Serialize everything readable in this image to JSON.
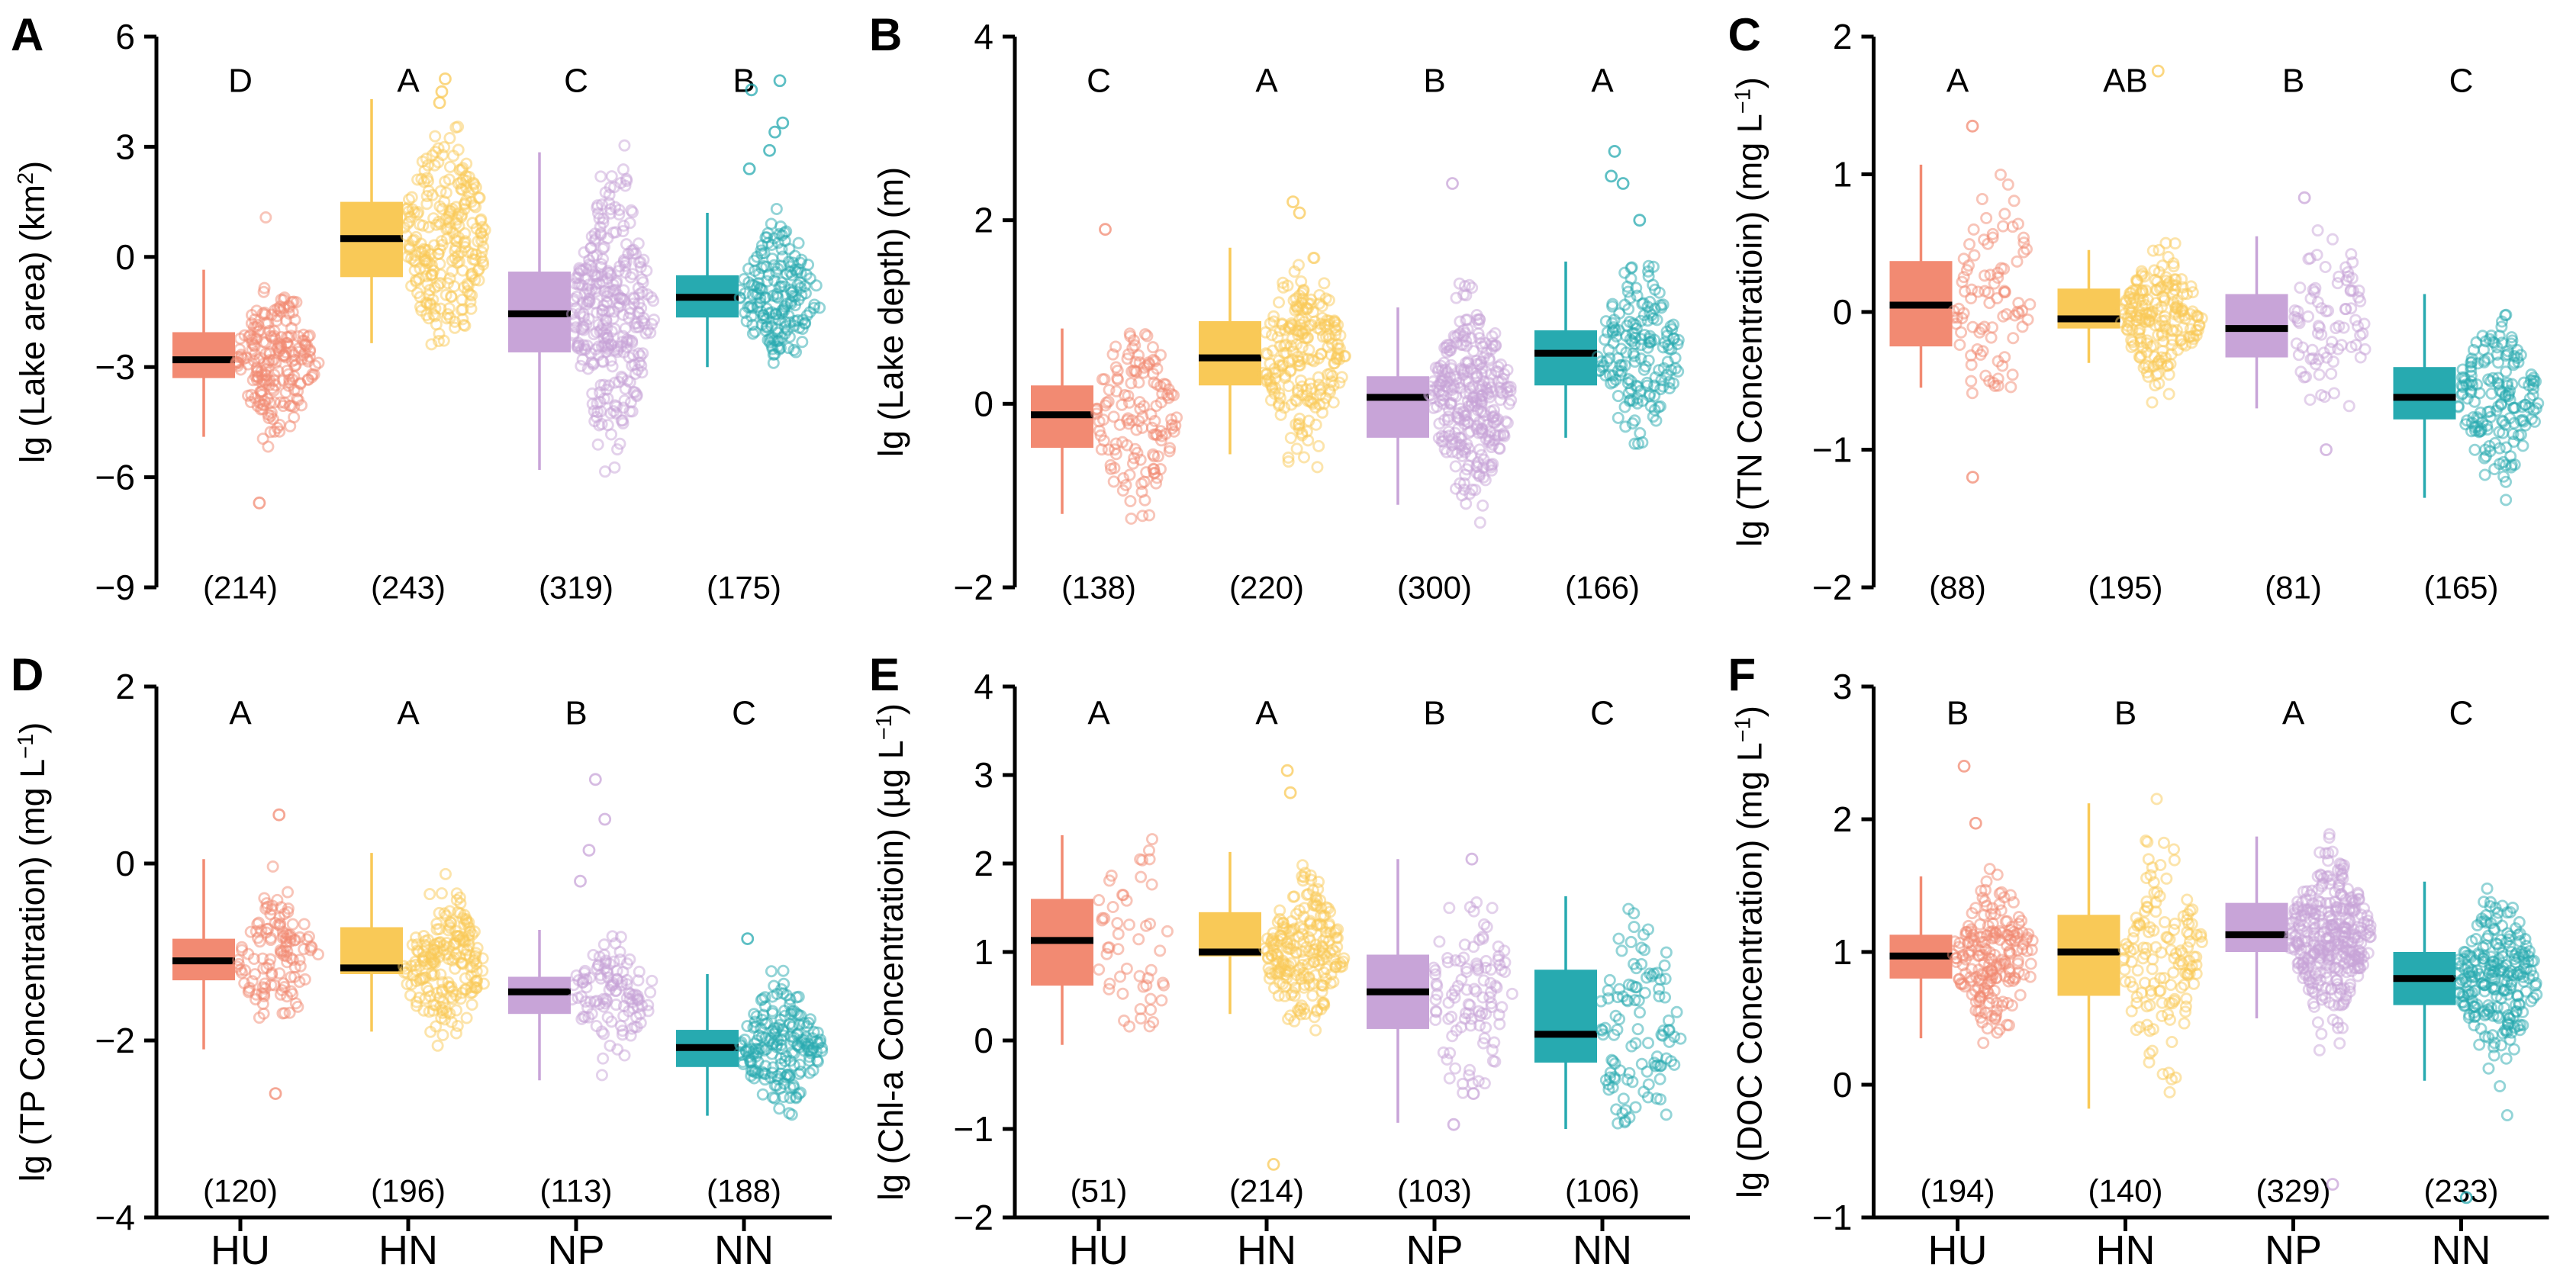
{
  "figure": {
    "background": "#FFFFFF",
    "rows": 2,
    "cols": 3,
    "description_visible_text_only": true
  },
  "colors": {
    "HU": "#F28A72",
    "HN": "#F9C957",
    "NP": "#C8A4D8",
    "NN": "#27AAB0",
    "median": "#000000",
    "axis": "#000000",
    "text": "#000000"
  },
  "categories": [
    "HU",
    "HN",
    "NP",
    "NN"
  ],
  "chart_data": [
    {
      "panel_letter": "A",
      "type": "box-jitter",
      "ylabel_pre": "lg (Lake area) (km",
      "ylabel_sup": "2",
      "ylabel_post": ")",
      "ylim": [
        -9,
        6
      ],
      "yticks": [
        6,
        3,
        0,
        -3,
        -6,
        -9
      ],
      "show_x_labels": false,
      "groups": [
        {
          "category": "HU",
          "sig": "D",
          "n": 214,
          "median": -2.8,
          "q1": -3.3,
          "q3": -2.05,
          "whisker_low": -4.9,
          "whisker_high": -0.35,
          "scatter_range": [
            -6.0,
            1.5
          ],
          "outliers": [
            -6.7
          ]
        },
        {
          "category": "HN",
          "sig": "A",
          "n": 243,
          "median": 0.5,
          "q1": -0.55,
          "q3": 1.5,
          "whisker_low": -2.35,
          "whisker_high": 4.3,
          "scatter_range": [
            -2.5,
            3.6
          ],
          "outliers": [
            4.85,
            4.5,
            4.2
          ]
        },
        {
          "category": "NP",
          "sig": "C",
          "n": 319,
          "median": -1.55,
          "q1": -2.6,
          "q3": -0.4,
          "whisker_low": -5.8,
          "whisker_high": 2.85,
          "scatter_range": [
            -7.0,
            3.5
          ],
          "outliers": []
        },
        {
          "category": "NN",
          "sig": "B",
          "n": 175,
          "median": -1.1,
          "q1": -1.65,
          "q3": -0.5,
          "whisker_low": -3.0,
          "whisker_high": 1.2,
          "scatter_range": [
            -3.1,
            2.0
          ],
          "outliers": [
            4.8,
            4.55,
            3.65,
            3.4,
            2.9,
            2.4
          ]
        }
      ]
    },
    {
      "panel_letter": "B",
      "type": "box-jitter",
      "ylabel_pre": "lg (Lake depth) (m)",
      "ylabel_sup": "",
      "ylabel_post": "",
      "ylim": [
        -2,
        4
      ],
      "yticks": [
        4,
        2,
        0,
        -2
      ],
      "show_x_labels": false,
      "groups": [
        {
          "category": "HU",
          "sig": "C",
          "n": 138,
          "median": -0.12,
          "q1": -0.48,
          "q3": 0.2,
          "whisker_low": -1.2,
          "whisker_high": 0.82,
          "scatter_range": [
            -1.55,
            0.85
          ],
          "outliers": [
            1.9
          ]
        },
        {
          "category": "HN",
          "sig": "A",
          "n": 220,
          "median": 0.5,
          "q1": 0.2,
          "q3": 0.9,
          "whisker_low": -0.55,
          "whisker_high": 1.7,
          "scatter_range": [
            -0.7,
            1.6
          ],
          "outliers": [
            2.2,
            2.08
          ]
        },
        {
          "category": "NP",
          "sig": "B",
          "n": 300,
          "median": 0.07,
          "q1": -0.37,
          "q3": 0.3,
          "whisker_low": -1.1,
          "whisker_high": 1.05,
          "scatter_range": [
            -1.45,
            2.1
          ],
          "outliers": [
            2.4
          ]
        },
        {
          "category": "NN",
          "sig": "A",
          "n": 166,
          "median": 0.55,
          "q1": 0.2,
          "q3": 0.8,
          "whisker_low": -0.37,
          "whisker_high": 1.55,
          "scatter_range": [
            -0.45,
            1.55
          ],
          "outliers": [
            2.75,
            2.48,
            2.4,
            2.0
          ]
        }
      ]
    },
    {
      "panel_letter": "C",
      "type": "box-jitter",
      "ylabel_pre": "lg (TN Concentratioin) (mg L",
      "ylabel_sup": "-1",
      "ylabel_post": ")",
      "ylim": [
        -2,
        2
      ],
      "yticks": [
        2,
        1,
        0,
        -1,
        -2
      ],
      "show_x_labels": false,
      "groups": [
        {
          "category": "HU",
          "sig": "A",
          "n": 88,
          "median": 0.05,
          "q1": -0.25,
          "q3": 0.37,
          "whisker_low": -0.55,
          "whisker_high": 1.07,
          "scatter_range": [
            -0.6,
            1.05
          ],
          "outliers": [
            1.35,
            -1.2
          ]
        },
        {
          "category": "HN",
          "sig": "AB",
          "n": 195,
          "median": -0.05,
          "q1": -0.12,
          "q3": 0.17,
          "whisker_low": -0.37,
          "whisker_high": 0.45,
          "scatter_range": [
            -1.35,
            1.05
          ],
          "outliers": [
            1.75
          ]
        },
        {
          "category": "NP",
          "sig": "B",
          "n": 81,
          "median": -0.12,
          "q1": -0.33,
          "q3": 0.13,
          "whisker_low": -0.7,
          "whisker_high": 0.55,
          "scatter_range": [
            -0.75,
            0.6
          ],
          "outliers": [
            0.83,
            -1.0
          ]
        },
        {
          "category": "NN",
          "sig": "C",
          "n": 165,
          "median": -0.62,
          "q1": -0.78,
          "q3": -0.4,
          "whisker_low": -1.35,
          "whisker_high": 0.13,
          "scatter_range": [
            -1.4,
            0.18
          ],
          "outliers": []
        }
      ]
    },
    {
      "panel_letter": "D",
      "type": "box-jitter",
      "ylabel_pre": "lg (TP Concentration) (mg L",
      "ylabel_sup": "-1",
      "ylabel_post": ")",
      "ylim": [
        -4,
        2
      ],
      "yticks": [
        2,
        0,
        -2,
        -4
      ],
      "show_x_labels": true,
      "groups": [
        {
          "category": "HU",
          "sig": "A",
          "n": 120,
          "median": -1.1,
          "q1": -1.32,
          "q3": -0.85,
          "whisker_low": -2.1,
          "whisker_high": 0.05,
          "scatter_range": [
            -2.15,
            0.1
          ],
          "outliers": [
            0.55,
            -2.6
          ]
        },
        {
          "category": "HN",
          "sig": "A",
          "n": 196,
          "median": -1.18,
          "q1": -1.25,
          "q3": -0.72,
          "whisker_low": -1.9,
          "whisker_high": 0.12,
          "scatter_range": [
            -2.1,
            1.0
          ],
          "outliers": []
        },
        {
          "category": "NP",
          "sig": "B",
          "n": 113,
          "median": -1.45,
          "q1": -1.7,
          "q3": -1.28,
          "whisker_low": -2.45,
          "whisker_high": -0.75,
          "scatter_range": [
            -2.55,
            -0.7
          ],
          "outliers": [
            0.95,
            0.5,
            0.15,
            -0.2
          ]
        },
        {
          "category": "NN",
          "sig": "C",
          "n": 188,
          "median": -2.08,
          "q1": -2.3,
          "q3": -1.88,
          "whisker_low": -2.85,
          "whisker_high": -1.25,
          "scatter_range": [
            -2.9,
            -1.2
          ],
          "outliers": [
            -0.85
          ]
        }
      ]
    },
    {
      "panel_letter": "E",
      "type": "box-jitter",
      "ylabel_pre": "lg (Chl-a Concentratioin) (µg L",
      "ylabel_sup": "-1",
      "ylabel_post": ")",
      "ylim": [
        -2,
        4
      ],
      "yticks": [
        4,
        3,
        2,
        1,
        0,
        -1,
        -2
      ],
      "show_x_labels": true,
      "groups": [
        {
          "category": "HU",
          "sig": "A",
          "n": 51,
          "median": 1.13,
          "q1": 0.62,
          "q3": 1.6,
          "whisker_low": -0.05,
          "whisker_high": 2.32,
          "scatter_range": [
            -0.1,
            2.35
          ],
          "outliers": []
        },
        {
          "category": "HN",
          "sig": "A",
          "n": 214,
          "median": 1.0,
          "q1": 0.95,
          "q3": 1.45,
          "whisker_low": 0.3,
          "whisker_high": 2.13,
          "scatter_range": [
            -0.25,
            2.5
          ],
          "outliers": [
            3.05,
            2.8,
            -1.4
          ]
        },
        {
          "category": "NP",
          "sig": "B",
          "n": 103,
          "median": 0.55,
          "q1": 0.13,
          "q3": 0.97,
          "whisker_low": -0.93,
          "whisker_high": 2.05,
          "scatter_range": [
            -0.6,
            1.65
          ],
          "outliers": [
            2.05,
            -0.6,
            -0.95
          ]
        },
        {
          "category": "NN",
          "sig": "C",
          "n": 106,
          "median": 0.07,
          "q1": -0.25,
          "q3": 0.8,
          "whisker_low": -1.0,
          "whisker_high": 1.63,
          "scatter_range": [
            -1.0,
            1.65
          ],
          "outliers": []
        }
      ]
    },
    {
      "panel_letter": "F",
      "type": "box-jitter",
      "ylabel_pre": "lg (DOC Concentration) (mg L",
      "ylabel_sup": "-1",
      "ylabel_post": ")",
      "ylim": [
        -1,
        3
      ],
      "yticks": [
        3,
        2,
        1,
        0,
        -1
      ],
      "show_x_labels": true,
      "groups": [
        {
          "category": "HU",
          "sig": "B",
          "n": 194,
          "median": 0.97,
          "q1": 0.8,
          "q3": 1.13,
          "whisker_low": 0.35,
          "whisker_high": 1.57,
          "scatter_range": [
            0.25,
            1.75
          ],
          "outliers": [
            2.4,
            1.97
          ]
        },
        {
          "category": "HN",
          "sig": "B",
          "n": 140,
          "median": 1.0,
          "q1": 0.67,
          "q3": 1.28,
          "whisker_low": -0.18,
          "whisker_high": 2.12,
          "scatter_range": [
            -0.45,
            2.25
          ],
          "outliers": []
        },
        {
          "category": "NP",
          "sig": "A",
          "n": 329,
          "median": 1.13,
          "q1": 1.0,
          "q3": 1.37,
          "whisker_low": 0.5,
          "whisker_high": 1.87,
          "scatter_range": [
            -0.25,
            2.08
          ],
          "outliers": [
            -0.75
          ]
        },
        {
          "category": "NN",
          "sig": "C",
          "n": 233,
          "median": 0.8,
          "q1": 0.6,
          "q3": 1.0,
          "whisker_low": 0.03,
          "whisker_high": 1.53,
          "scatter_range": [
            -0.5,
            1.7
          ],
          "outliers": [
            -0.85
          ]
        }
      ]
    }
  ]
}
